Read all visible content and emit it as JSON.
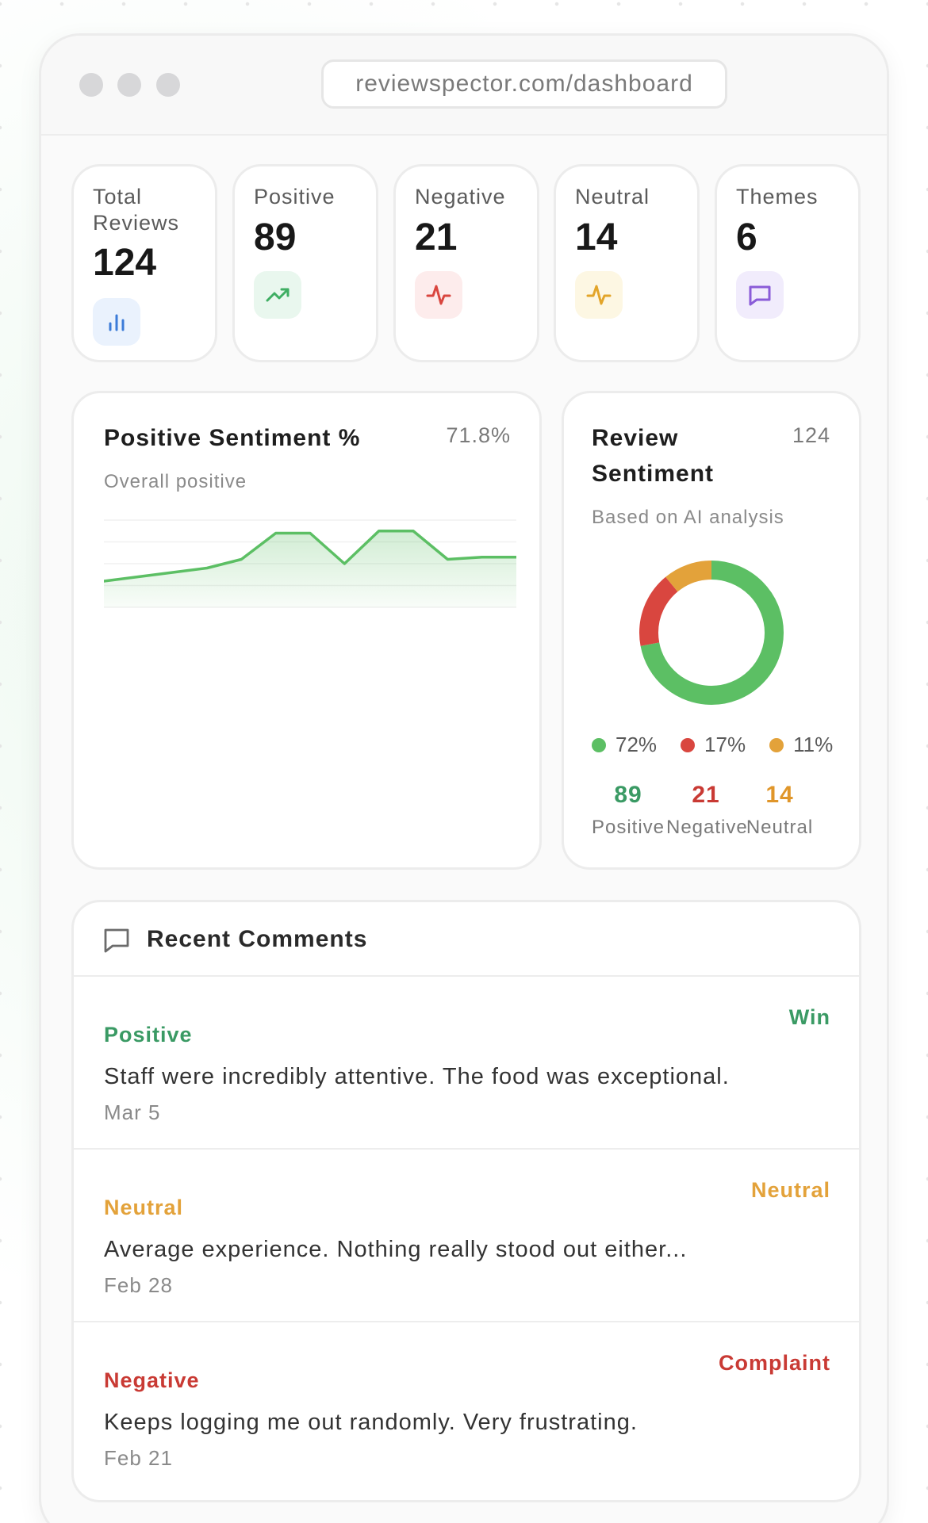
{
  "browser": {
    "url": "reviewspector.com/dashboard"
  },
  "stats": [
    {
      "label": "Total Reviews",
      "value": "124",
      "icon": "bar-chart-icon",
      "color": "#3b7bd8",
      "bg": "#eaf2fd"
    },
    {
      "label": "Positive",
      "value": "89",
      "icon": "trending-up-icon",
      "color": "#3fae63",
      "bg": "#e9f7ee"
    },
    {
      "label": "Negative",
      "value": "21",
      "icon": "pulse-icon",
      "color": "#d9463f",
      "bg": "#fdecec"
    },
    {
      "label": "Neutral",
      "value": "14",
      "icon": "pulse-icon",
      "color": "#e3a52a",
      "bg": "#fdf7e3"
    },
    {
      "label": "Themes",
      "value": "6",
      "icon": "message-square-icon",
      "color": "#8a5cd8",
      "bg": "#f1ecfc"
    }
  ],
  "trend_card": {
    "title": "Positive Sentiment %",
    "subtitle": "Overall positive",
    "value": "71.8%"
  },
  "chart_data": {
    "type": "area",
    "title": "Positive Sentiment %",
    "x": [
      1,
      2,
      3,
      4,
      5,
      6,
      7,
      8,
      9,
      10,
      11,
      12,
      13
    ],
    "values": [
      62,
      64,
      66,
      68,
      72,
      84,
      84,
      70,
      85,
      85,
      72,
      73,
      73
    ],
    "ylim": [
      50,
      90
    ],
    "grid": true,
    "color": "#5cbf64"
  },
  "sentiment_card": {
    "title_line1": "Review",
    "title_line2": "Sentiment",
    "subtitle": "Based on AI analysis",
    "total": "124",
    "slices": [
      {
        "name": "Positive",
        "percent": 72,
        "label": "72%",
        "count": "89",
        "color": "#5cbf64",
        "count_color": "#3a9a64"
      },
      {
        "name": "Negative",
        "percent": 17,
        "label": "17%",
        "count": "21",
        "color": "#d9463f",
        "count_color": "#c93a34"
      },
      {
        "name": "Neutral",
        "percent": 11,
        "label": "11%",
        "count": "14",
        "color": "#e3a23a",
        "count_color": "#e0962a"
      }
    ]
  },
  "comments": {
    "title": "Recent Comments",
    "items": [
      {
        "sentiment": "Positive",
        "tag": "Win",
        "text": "Staff were incredibly attentive. The food was exceptional.",
        "date": "Mar 5",
        "color": "#3a9a64"
      },
      {
        "sentiment": "Neutral",
        "tag": "Neutral",
        "text": "Average experience. Nothing really stood out either...",
        "date": "Feb 28",
        "color": "#e3a23a"
      },
      {
        "sentiment": "Negative",
        "tag": "Complaint",
        "text": "Keeps logging me out randomly. Very frustrating.",
        "date": "Feb 21",
        "color": "#c93a34"
      }
    ]
  }
}
